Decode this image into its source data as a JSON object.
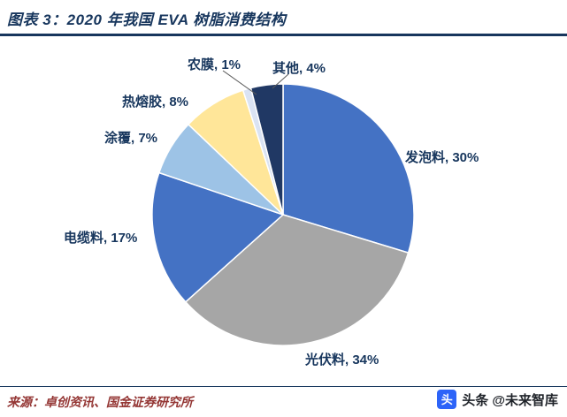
{
  "header": {
    "title": "图表 3：2020 年我国 EVA 树脂消费结构"
  },
  "chart_data": {
    "type": "pie",
    "title": "2020 年我国 EVA 树脂消费结构",
    "direction": "clockwise",
    "start_angle_deg": 0,
    "legend_position": "none",
    "label_color": "#17365D",
    "slices": [
      {
        "label": "发泡料",
        "value": 30,
        "display": "发泡料, 30%",
        "color": "#4472C4"
      },
      {
        "label": "光伏料",
        "value": 34,
        "display": "光伏料, 34%",
        "color": "#A6A6A6"
      },
      {
        "label": "电缆料",
        "value": 17,
        "display": "电缆料, 17%",
        "color": "#4472C4"
      },
      {
        "label": "涂覆",
        "value": 7,
        "display": "涂覆, 7%",
        "color": "#9DC3E6"
      },
      {
        "label": "热熔胶",
        "value": 8,
        "display": "热熔胶, 8%",
        "color": "#FFE699"
      },
      {
        "label": "农膜",
        "value": 1,
        "display": "农膜, 1%",
        "color": "#DAE3F3"
      },
      {
        "label": "其他",
        "value": 4,
        "display": "其他, 4%",
        "color": "#203864"
      }
    ]
  },
  "footer": {
    "source": "来源：卓创资讯、国金证券研究所",
    "watermark": {
      "icon_glyph": "头",
      "label": "头条 @未来智库"
    }
  },
  "colors": {
    "title_navy": "#17365D",
    "rule_navy": "#17365D",
    "source_red": "#943634",
    "watermark_blue": "#2D64F8",
    "leader_line": "#595959"
  }
}
